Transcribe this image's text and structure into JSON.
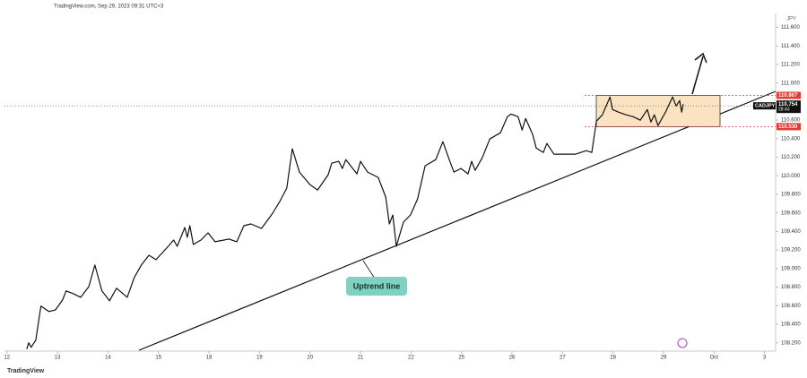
{
  "chart_data": {
    "type": "line",
    "header": "TradingView.com, Sep 29, 2023 09:31 UTC+3",
    "currency": "JPY",
    "footer": "TradingView",
    "annotation": "Uptrend line",
    "symbol": "CADJPY",
    "last_price": 110.754,
    "countdown": "28:43",
    "zone": {
      "top": 110.867,
      "bottom": 110.53,
      "top_label": "110.867",
      "bottom_label": "110.530",
      "color": "#fbe3c2"
    },
    "ylim": [
      108.13,
      111.75
    ],
    "yticks": [
      {
        "value": 108.2,
        "label": "108.200"
      },
      {
        "value": 108.4,
        "label": "108.400"
      },
      {
        "value": 108.6,
        "label": "108.600"
      },
      {
        "value": 108.8,
        "label": "108.800"
      },
      {
        "value": 109.0,
        "label": "109.000"
      },
      {
        "value": 109.2,
        "label": "109.200"
      },
      {
        "value": 109.4,
        "label": "109.400"
      },
      {
        "value": 109.6,
        "label": "109.600"
      },
      {
        "value": 109.8,
        "label": "109.800"
      },
      {
        "value": 110.0,
        "label": "110.000"
      },
      {
        "value": 110.2,
        "label": "110.200"
      },
      {
        "value": 110.4,
        "label": "110.400"
      },
      {
        "value": 110.6,
        "label": "110.600"
      },
      {
        "value": 111.0,
        "label": "111.000"
      },
      {
        "value": 111.2,
        "label": "111.200"
      },
      {
        "value": 111.4,
        "label": "111.400"
      },
      {
        "value": 111.6,
        "label": "111.600"
      }
    ],
    "xlim": [
      -0.05,
      15.22
    ],
    "xticks": [
      {
        "value": 0,
        "label": "12"
      },
      {
        "value": 1,
        "label": "13"
      },
      {
        "value": 2,
        "label": "14"
      },
      {
        "value": 3,
        "label": "15"
      },
      {
        "value": 4,
        "label": "18"
      },
      {
        "value": 5,
        "label": "19"
      },
      {
        "value": 6,
        "label": "20"
      },
      {
        "value": 7,
        "label": "21"
      },
      {
        "value": 8,
        "label": "22"
      },
      {
        "value": 9,
        "label": "25"
      },
      {
        "value": 10,
        "label": "26"
      },
      {
        "value": 11,
        "label": "27"
      },
      {
        "value": 12,
        "label": "28"
      },
      {
        "value": 13,
        "label": "29"
      },
      {
        "value": 14,
        "label": "Oct"
      },
      {
        "value": 15,
        "label": "3"
      }
    ],
    "series": [
      {
        "color": "#111111",
        "x": [
          0.39,
          0.43,
          0.48,
          0.57,
          0.67,
          0.83,
          0.96,
          1.1,
          1.17,
          1.31,
          1.46,
          1.62,
          1.74,
          1.88,
          2.03,
          2.17,
          2.38,
          2.52,
          2.66,
          2.81,
          2.95,
          3.16,
          3.3,
          3.37,
          3.52,
          3.57,
          3.62,
          3.69,
          3.84,
          3.98,
          4.12,
          4.4,
          4.55,
          4.69,
          4.83,
          5.04,
          5.26,
          5.4,
          5.54,
          5.65,
          5.79,
          6.0,
          6.15,
          6.36,
          6.43,
          6.57,
          6.64,
          6.71,
          6.93,
          7.0,
          7.14,
          7.35,
          7.5,
          7.57,
          7.64,
          7.71,
          7.85,
          7.99,
          8.13,
          8.28,
          8.49,
          8.63,
          8.77,
          8.85,
          8.99,
          9.13,
          9.2,
          9.27,
          9.41,
          9.56,
          9.77,
          9.91,
          9.98,
          10.12,
          10.2,
          10.27,
          10.41,
          10.48,
          10.62,
          10.69,
          10.83,
          11.05,
          11.26,
          11.47,
          11.58,
          11.67,
          11.79,
          11.94,
          11.99,
          12.11,
          12.26,
          12.4,
          12.54,
          12.68,
          12.75,
          12.82,
          12.89,
          13.04,
          13.18,
          13.25,
          13.32,
          13.36,
          13.39
        ],
        "values": [
          108.133,
          108.2,
          108.152,
          108.229,
          108.595,
          108.537,
          108.556,
          108.662,
          108.759,
          108.73,
          108.691,
          108.807,
          109.038,
          108.759,
          108.653,
          108.788,
          108.691,
          108.903,
          109.038,
          109.144,
          109.096,
          109.221,
          109.308,
          109.24,
          109.443,
          109.337,
          109.462,
          109.26,
          109.308,
          109.385,
          109.289,
          109.318,
          109.289,
          109.462,
          109.481,
          109.433,
          109.597,
          109.722,
          109.867,
          110.291,
          110.04,
          109.905,
          109.847,
          110.011,
          110.136,
          110.156,
          110.079,
          110.175,
          110.021,
          110.156,
          110.04,
          109.982,
          109.77,
          109.481,
          109.578,
          109.24,
          109.501,
          109.578,
          109.751,
          110.108,
          110.175,
          110.368,
          110.156,
          110.04,
          110.079,
          110.021,
          110.156,
          110.059,
          110.194,
          110.397,
          110.464,
          110.637,
          110.666,
          110.637,
          110.493,
          110.618,
          110.445,
          110.3,
          110.252,
          110.348,
          110.233,
          110.233,
          110.233,
          110.271,
          110.252,
          110.589,
          110.657,
          110.849,
          110.714,
          110.686,
          110.657,
          110.637,
          110.599,
          110.714,
          110.58,
          110.657,
          110.541,
          110.686,
          110.849,
          110.753,
          110.811,
          110.686,
          110.772
        ]
      }
    ]
  }
}
